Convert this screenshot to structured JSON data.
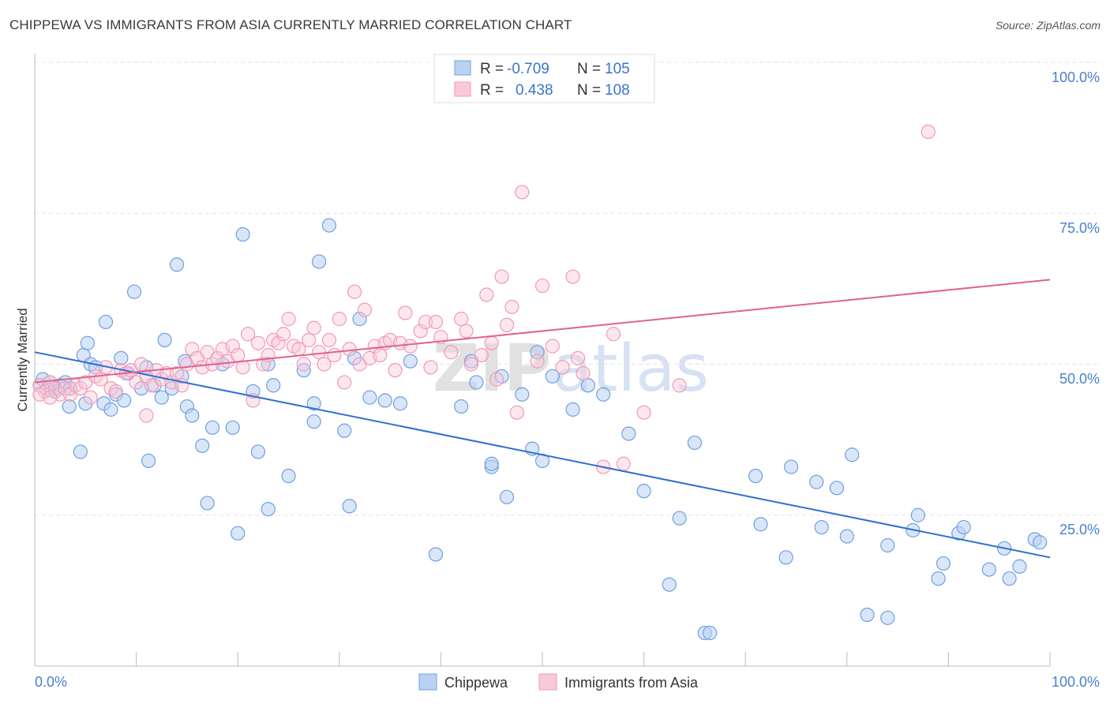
{
  "title": "CHIPPEWA VS IMMIGRANTS FROM ASIA CURRENTLY MARRIED CORRELATION CHART",
  "source": "Source: ZipAtlas.com",
  "watermark": {
    "zip": "ZIP",
    "atlas": "atlas"
  },
  "legend": {
    "r_label": "R =",
    "n_label": "N =",
    "rows": [
      {
        "r": "-0.709",
        "n": "105"
      },
      {
        "r": "0.438",
        "n": "108"
      }
    ]
  },
  "chart_data": {
    "type": "scatter",
    "title": "CHIPPEWA VS IMMIGRANTS FROM ASIA CURRENTLY MARRIED CORRELATION CHART",
    "xlabel": "",
    "ylabel": "Currently Married",
    "xlim": [
      0,
      100
    ],
    "ylim": [
      0,
      100
    ],
    "x_tick_labels": [
      "0.0%",
      "100.0%"
    ],
    "y_tick_labels": [
      "100.0%",
      "75.0%",
      "50.0%",
      "25.0%"
    ],
    "y_ticks": [
      100,
      75,
      50,
      25
    ],
    "grid": true,
    "legend_position": "top-center",
    "colors": {
      "chippewa": "#6fa0e0",
      "asia": "#f09ab8",
      "chippewa_line": "#2f6fd0",
      "asia_line": "#e0628e",
      "axis_text": "#4a7fd4"
    },
    "series": [
      {
        "name": "Chippewa",
        "r": -0.709,
        "n": 105,
        "trend": {
          "x": [
            0,
            100
          ],
          "y": [
            52,
            18
          ]
        },
        "points": [
          [
            0.5,
            46.5
          ],
          [
            0.8,
            47.5
          ],
          [
            1.2,
            45.8
          ],
          [
            1.5,
            47
          ],
          [
            2,
            45.5
          ],
          [
            2.5,
            46.5
          ],
          [
            3,
            47
          ],
          [
            3.5,
            46
          ],
          [
            3.4,
            43
          ],
          [
            4.5,
            35.5
          ],
          [
            4.8,
            51.5
          ],
          [
            5,
            43.5
          ],
          [
            5.2,
            53.5
          ],
          [
            5.5,
            50
          ],
          [
            6,
            49.5
          ],
          [
            6.8,
            43.5
          ],
          [
            7,
            57
          ],
          [
            7.5,
            42.5
          ],
          [
            8,
            45
          ],
          [
            8.5,
            51
          ],
          [
            8.8,
            44
          ],
          [
            9.2,
            48.5
          ],
          [
            9.8,
            62
          ],
          [
            10.5,
            46
          ],
          [
            11,
            49.5
          ],
          [
            11.2,
            34
          ],
          [
            11.8,
            46.5
          ],
          [
            12.5,
            44.5
          ],
          [
            12.8,
            54
          ],
          [
            13.5,
            46
          ],
          [
            14,
            66.5
          ],
          [
            14.5,
            48
          ],
          [
            14.8,
            50.5
          ],
          [
            15,
            43
          ],
          [
            15.5,
            41.5
          ],
          [
            16.5,
            36.5
          ],
          [
            17,
            27
          ],
          [
            17.5,
            39.5
          ],
          [
            18.5,
            50
          ],
          [
            19.5,
            39.5
          ],
          [
            20,
            22
          ],
          [
            20.5,
            71.5
          ],
          [
            21.5,
            45.5
          ],
          [
            22,
            35.5
          ],
          [
            23,
            50
          ],
          [
            23,
            26
          ],
          [
            23.5,
            46.5
          ],
          [
            25,
            31.5
          ],
          [
            26.5,
            49
          ],
          [
            27.5,
            40.5
          ],
          [
            27.5,
            43.5
          ],
          [
            28,
            67
          ],
          [
            29,
            73
          ],
          [
            30.5,
            39
          ],
          [
            31,
            26.5
          ],
          [
            31.5,
            51
          ],
          [
            32,
            57.5
          ],
          [
            33,
            44.5
          ],
          [
            34.5,
            44
          ],
          [
            36,
            43.5
          ],
          [
            37,
            50.5
          ],
          [
            39.5,
            18.5
          ],
          [
            42,
            43
          ],
          [
            43.5,
            47
          ],
          [
            43,
            50.5
          ],
          [
            45,
            33
          ],
          [
            45,
            33.5
          ],
          [
            46,
            48
          ],
          [
            46.5,
            28
          ],
          [
            48,
            45
          ],
          [
            49,
            36
          ],
          [
            50,
            34
          ],
          [
            49.5,
            52
          ],
          [
            51,
            48
          ],
          [
            53,
            42.5
          ],
          [
            54.5,
            46.5
          ],
          [
            56,
            45
          ],
          [
            58.5,
            38.5
          ],
          [
            60,
            29
          ],
          [
            62.5,
            13.5
          ],
          [
            63.5,
            24.5
          ],
          [
            65,
            37
          ],
          [
            66,
            5.5
          ],
          [
            66.5,
            5.5
          ],
          [
            71,
            31.5
          ],
          [
            71.5,
            23.5
          ],
          [
            74,
            18
          ],
          [
            74.5,
            33
          ],
          [
            77,
            30.5
          ],
          [
            77.5,
            23
          ],
          [
            79,
            29.5
          ],
          [
            80,
            21.5
          ],
          [
            80.5,
            35
          ],
          [
            84,
            20
          ],
          [
            86.5,
            22.5
          ],
          [
            87,
            25
          ],
          [
            89,
            14.5
          ],
          [
            89.5,
            17
          ],
          [
            91,
            22
          ],
          [
            91.5,
            23
          ],
          [
            94,
            16
          ],
          [
            95.5,
            19.5
          ],
          [
            96,
            14.5
          ],
          [
            97,
            16.5
          ],
          [
            98.5,
            21
          ],
          [
            99,
            20.5
          ],
          [
            82,
            8.5
          ],
          [
            84,
            8
          ]
        ]
      },
      {
        "name": "Immigrants from Asia",
        "r": 0.438,
        "n": 108,
        "trend": {
          "x": [
            0,
            100
          ],
          "y": [
            47,
            64
          ]
        },
        "points": [
          [
            0.5,
            46.5
          ],
          [
            1,
            45.5
          ],
          [
            1.5,
            47
          ],
          [
            2,
            46
          ],
          [
            2.5,
            45
          ],
          [
            3,
            46
          ],
          [
            3.5,
            45
          ],
          [
            4,
            46.5
          ],
          [
            4.5,
            46
          ],
          [
            5,
            47
          ],
          [
            5.5,
            44.5
          ],
          [
            6,
            48
          ],
          [
            6.5,
            47.5
          ],
          [
            7,
            49.5
          ],
          [
            7.5,
            46
          ],
          [
            8,
            45.5
          ],
          [
            8.5,
            49
          ],
          [
            9,
            48.5
          ],
          [
            9.5,
            49
          ],
          [
            10,
            47
          ],
          [
            10.5,
            50
          ],
          [
            11,
            48
          ],
          [
            11.5,
            46.5
          ],
          [
            12,
            49
          ],
          [
            12.5,
            47.5
          ],
          [
            13,
            48.5
          ],
          [
            13.5,
            47
          ],
          [
            14,
            48.5
          ],
          [
            14.5,
            46.5
          ],
          [
            15,
            50
          ],
          [
            15.5,
            52.5
          ],
          [
            16,
            51
          ],
          [
            16.5,
            49.5
          ],
          [
            17,
            52
          ],
          [
            17.5,
            50
          ],
          [
            18,
            51
          ],
          [
            18.5,
            52.5
          ],
          [
            19,
            50.5
          ],
          [
            19.5,
            53
          ],
          [
            20,
            51.5
          ],
          [
            20.5,
            49.5
          ],
          [
            21,
            55
          ],
          [
            22,
            53.5
          ],
          [
            22.5,
            50
          ],
          [
            23,
            51.5
          ],
          [
            23.5,
            54
          ],
          [
            24,
            53.5
          ],
          [
            24.5,
            55
          ],
          [
            25,
            57.5
          ],
          [
            25.5,
            53
          ],
          [
            26,
            52.5
          ],
          [
            26.5,
            50
          ],
          [
            27,
            54
          ],
          [
            27.5,
            56
          ],
          [
            28,
            52
          ],
          [
            28.5,
            50
          ],
          [
            29,
            54
          ],
          [
            29.5,
            51.5
          ],
          [
            30,
            57.5
          ],
          [
            30.5,
            47
          ],
          [
            31,
            52.5
          ],
          [
            31.5,
            62
          ],
          [
            32,
            50
          ],
          [
            32.5,
            59
          ],
          [
            33,
            51
          ],
          [
            33.5,
            53
          ],
          [
            34,
            51.5
          ],
          [
            34.5,
            53.5
          ],
          [
            35,
            54
          ],
          [
            35.5,
            49
          ],
          [
            36,
            53.5
          ],
          [
            36.5,
            58.5
          ],
          [
            37,
            53
          ],
          [
            38,
            55.5
          ],
          [
            38.5,
            57
          ],
          [
            39,
            49.5
          ],
          [
            39.5,
            57
          ],
          [
            40,
            54.5
          ],
          [
            41,
            52
          ],
          [
            42,
            57.5
          ],
          [
            42.5,
            55.5
          ],
          [
            43,
            50
          ],
          [
            44,
            51.5
          ],
          [
            44.5,
            61.5
          ],
          [
            45,
            53.5
          ],
          [
            45.5,
            47.5
          ],
          [
            46,
            64.5
          ],
          [
            46.5,
            56.5
          ],
          [
            47,
            59.5
          ],
          [
            47.5,
            42
          ],
          [
            48,
            78.5
          ],
          [
            49.5,
            50.5
          ],
          [
            50,
            63
          ],
          [
            51,
            53
          ],
          [
            52,
            49.5
          ],
          [
            53,
            64.5
          ],
          [
            53.5,
            51
          ],
          [
            54,
            48.5
          ],
          [
            56,
            33
          ],
          [
            57,
            55
          ],
          [
            58,
            33.5
          ],
          [
            60,
            42
          ],
          [
            63.5,
            46.5
          ],
          [
            88,
            88.5
          ],
          [
            0.5,
            45
          ],
          [
            1.5,
            44.5
          ],
          [
            11,
            41.5
          ],
          [
            21.5,
            44
          ]
        ]
      }
    ]
  },
  "bottom_legend": [
    "Chippewa",
    "Immigrants from Asia"
  ]
}
